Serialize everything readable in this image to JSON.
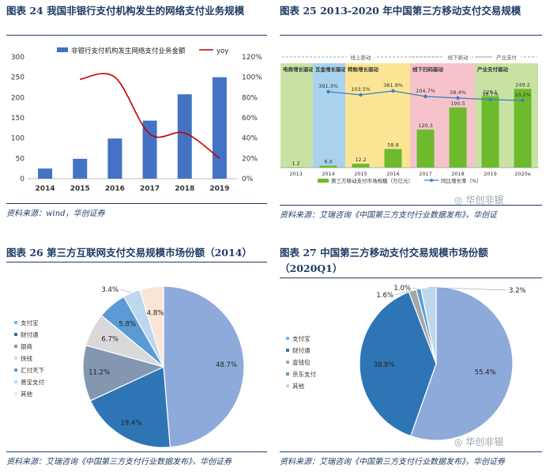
{
  "panels": {
    "p24": {
      "title": "图表 24 我国非银行支付机构发生的网络支付业务规模",
      "source": "资料来源：wind，华创证券"
    },
    "p25": {
      "title": "图表 25 2013-2020 年中国第三方移动支付交易规模",
      "source": "资料来源：艾瑞咨询《中国第三方支付行业数据发布》，华创证",
      "watermark": "华创非银"
    },
    "p26": {
      "title": "图表 26 第三方互联网支付交易规模市场份额（2014）",
      "source": "资料来源：艾瑞咨询《中国第三方支付行业数据发布》，华创证券"
    },
    "p27": {
      "title_line1": "图表 27 中国第三方移动支付交易规模市场份额",
      "title_line2": "（2020Q1）",
      "source": "资料来源：艾瑞咨询《中国第三方支付行业数据发布》，华创证券",
      "watermark": "华创非银"
    }
  },
  "chart_data": [
    {
      "id": "p24",
      "type": "bar",
      "categories": [
        "2014",
        "2015",
        "2016",
        "2017",
        "2018",
        "2019"
      ],
      "series": [
        {
          "name": "非银行支付机构发生网络支付业务金额",
          "type": "bar",
          "axis": "left",
          "values": [
            25,
            49,
            99,
            143,
            208,
            250
          ]
        },
        {
          "name": "yoy",
          "type": "line",
          "axis": "right",
          "values": [
            null,
            0.98,
            1.0,
            0.44,
            0.45,
            0.2
          ]
        }
      ],
      "yleft": {
        "ticks": [
          "0",
          "50",
          "100",
          "150",
          "200",
          "250",
          "300"
        ],
        "range": [
          0,
          300
        ]
      },
      "yright": {
        "ticks": [
          "0%",
          "20%",
          "40%",
          "60%",
          "80%",
          "100%",
          "120%"
        ],
        "range": [
          0,
          1.2
        ]
      },
      "legend_position": "top",
      "colors": {
        "bar": "#4472c4",
        "line": "#c00000"
      }
    },
    {
      "id": "p25",
      "type": "bar",
      "categories": [
        "2013",
        "2014",
        "2015",
        "2016",
        "2017",
        "2018",
        "2019",
        "2020e"
      ],
      "bars": {
        "name": "第三方移动支付市场规模（万亿元）",
        "values": [
          1.2,
          6.0,
          12.2,
          58.8,
          120.3,
          190.5,
          226.1,
          249.2
        ],
        "labels": [
          "1.2",
          "6.0",
          "12.2",
          "58.8",
          "120.3",
          "190.5",
          "226.1",
          "249.2"
        ]
      },
      "yoy": {
        "name": "同比增长率（%）",
        "labels": [
          "",
          "391.3%",
          "103.5%",
          "381.9%",
          "104.7%",
          "58.4%",
          "18.7%",
          "10.2%"
        ]
      },
      "stages": [
        {
          "label": "电商增长驱动",
          "from": 0,
          "to": 1,
          "color": "#c9e2a3"
        },
        {
          "label": "互金增长驱动",
          "from": 1,
          "to": 2,
          "color": "#a9d3ee"
        },
        {
          "label": "转账增长驱动",
          "from": 2,
          "to": 4,
          "color": "#fbe595"
        },
        {
          "label": "线下扫码驱动",
          "from": 4,
          "to": 6,
          "color": "#f7c3cb"
        },
        {
          "label": "产业支付驱动",
          "from": 6,
          "to": 7,
          "color": "#c9e2a3"
        }
      ],
      "phases": [
        {
          "label": "线上驱动",
          "from": 0,
          "to": 4
        },
        {
          "label": "线下驱动",
          "from": 4,
          "to": 6
        },
        {
          "label": "产业支付",
          "from": 6,
          "to": 7
        }
      ],
      "colors": {
        "bar": "#6dbb2d",
        "line": "#3f7dc0"
      }
    },
    {
      "id": "p26",
      "type": "pie",
      "slices": [
        {
          "name": "支付宝",
          "value": 48.7,
          "label": "48.7%",
          "color": "#8eaadb"
        },
        {
          "name": "财付通",
          "value": 19.4,
          "label": "19.4%",
          "color": "#2e75b6"
        },
        {
          "name": "银商",
          "value": 11.2,
          "label": "11.2%",
          "color": "#8497b0"
        },
        {
          "name": "快钱",
          "value": 6.7,
          "label": "6.7%",
          "color": "#d9d9d9"
        },
        {
          "name": "汇付天下",
          "value": 5.8,
          "label": "5.8%",
          "color": "#5b9bd5"
        },
        {
          "name": "易宝支付",
          "value": 3.4,
          "label": "3.4%",
          "color": "#bdd7ee"
        },
        {
          "name": "其他",
          "value": 4.8,
          "label": "4.8%",
          "color": "#fbe5d6"
        }
      ]
    },
    {
      "id": "p27",
      "type": "pie",
      "slices": [
        {
          "name": "支付宝",
          "value": 55.4,
          "label": "55.4%",
          "color": "#8eaadb"
        },
        {
          "name": "财付通",
          "value": 38.8,
          "label": "38.8%",
          "color": "#2e75b6"
        },
        {
          "name": "壹钱包",
          "value": 1.6,
          "label": "1.6%",
          "color": "#a6a6a6"
        },
        {
          "name": "京东支付",
          "value": 1.0,
          "label": "1.0%",
          "color": "#5b9bd5"
        },
        {
          "name": "其他",
          "value": 3.2,
          "label": "3.2%",
          "color": "#bdd7ee"
        }
      ]
    }
  ]
}
